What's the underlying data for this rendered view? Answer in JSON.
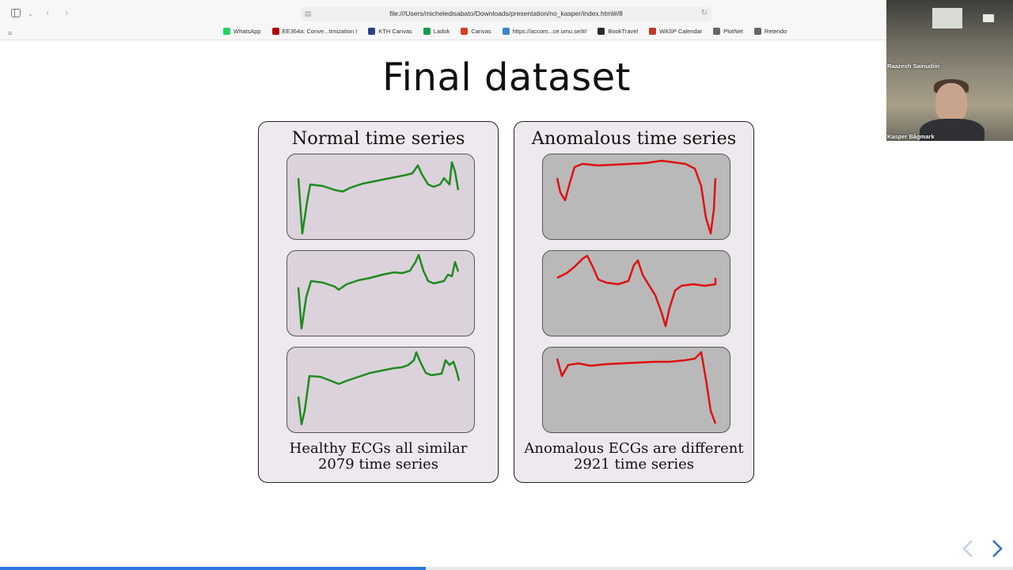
{
  "browser": {
    "url": "file:///Users/micheledisabato/Downloads/presentation/no_kasper/index.html#/8",
    "bookmarks": [
      {
        "label": "WhatsApp",
        "color": "#25d366"
      },
      {
        "label": "EE364a: Conve...timization I",
        "color": "#b1040e"
      },
      {
        "label": "KTH Canvas",
        "color": "#2d3f8f"
      },
      {
        "label": "Ladok",
        "color": "#1a9c4a"
      },
      {
        "label": "Canvas",
        "color": "#d64027"
      },
      {
        "label": "https://accom...ce.umu.se/#/",
        "color": "#3a86c8"
      },
      {
        "label": "BookTravel",
        "color": "#2b2b2b"
      },
      {
        "label": "WASP Calendar",
        "color": "#c0392b"
      },
      {
        "label": "PlotNet",
        "color": "#666666"
      },
      {
        "label": "Retendo",
        "color": "#666666"
      }
    ]
  },
  "slide": {
    "title": "Final dataset",
    "normal": {
      "title": "Normal time series",
      "caption_line1": "Healthy ECGs all similar",
      "caption_line2": "2079 time series",
      "color": "#1e8a1e"
    },
    "anomalous": {
      "title": "Anomalous time series",
      "caption_line1": "Anomalous ECGs are different",
      "caption_line2": "2921 time series",
      "color": "#e01010"
    }
  },
  "video": {
    "participant_top": "Raazesh Sainudiin",
    "participant_bottom": "Kasper Bågmark"
  },
  "navigation": {
    "prev_icon": "chevron-left-icon",
    "next_icon": "chevron-right-icon",
    "progress": 0.42
  }
}
